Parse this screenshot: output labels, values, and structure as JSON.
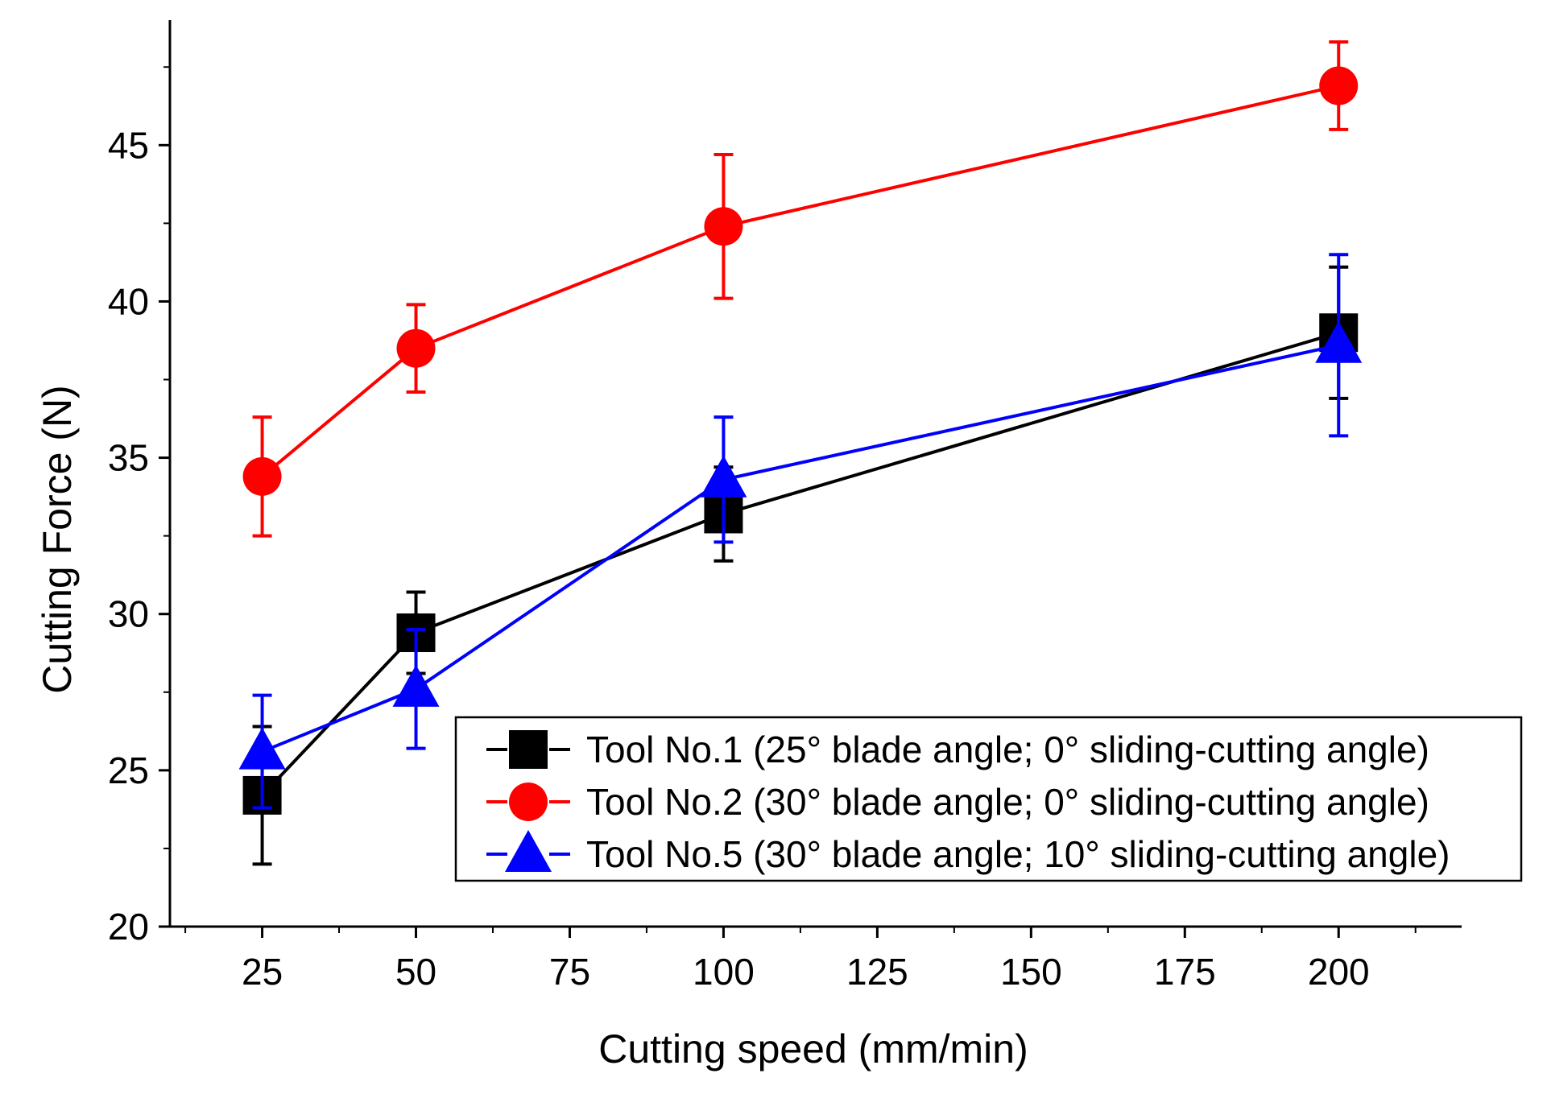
{
  "chart_data": {
    "type": "line",
    "xlabel": "Cutting speed (mm/min)",
    "ylabel": "Cutting Force (N)",
    "xlim": [
      10,
      220
    ],
    "ylim": [
      20,
      49
    ],
    "xticks": [
      25,
      50,
      75,
      100,
      125,
      150,
      175,
      200
    ],
    "yticks": [
      20,
      25,
      30,
      35,
      40,
      45
    ],
    "grid": false,
    "legend_position": "bottom-right",
    "x": [
      25,
      50,
      100,
      200
    ],
    "series": [
      {
        "name": "Tool No.1 (25° blade angle; 0° sliding-cutting angle)",
        "color": "#000000",
        "marker": "square",
        "values": [
          24.2,
          29.4,
          33.2,
          39.0
        ],
        "errors": [
          2.2,
          1.3,
          1.5,
          2.1
        ]
      },
      {
        "name": "Tool No.2 (30° blade angle; 0° sliding-cutting angle)",
        "color": "#ff0000",
        "marker": "circle",
        "values": [
          34.4,
          38.5,
          42.4,
          46.9
        ],
        "errors": [
          1.9,
          1.4,
          2.3,
          1.4
        ]
      },
      {
        "name": "Tool No.5 (30° blade angle; 10° sliding-cutting angle)",
        "color": "#0000ff",
        "marker": "triangle",
        "values": [
          25.6,
          27.6,
          34.3,
          38.6
        ],
        "errors": [
          1.8,
          1.9,
          2.0,
          2.9
        ]
      }
    ]
  }
}
